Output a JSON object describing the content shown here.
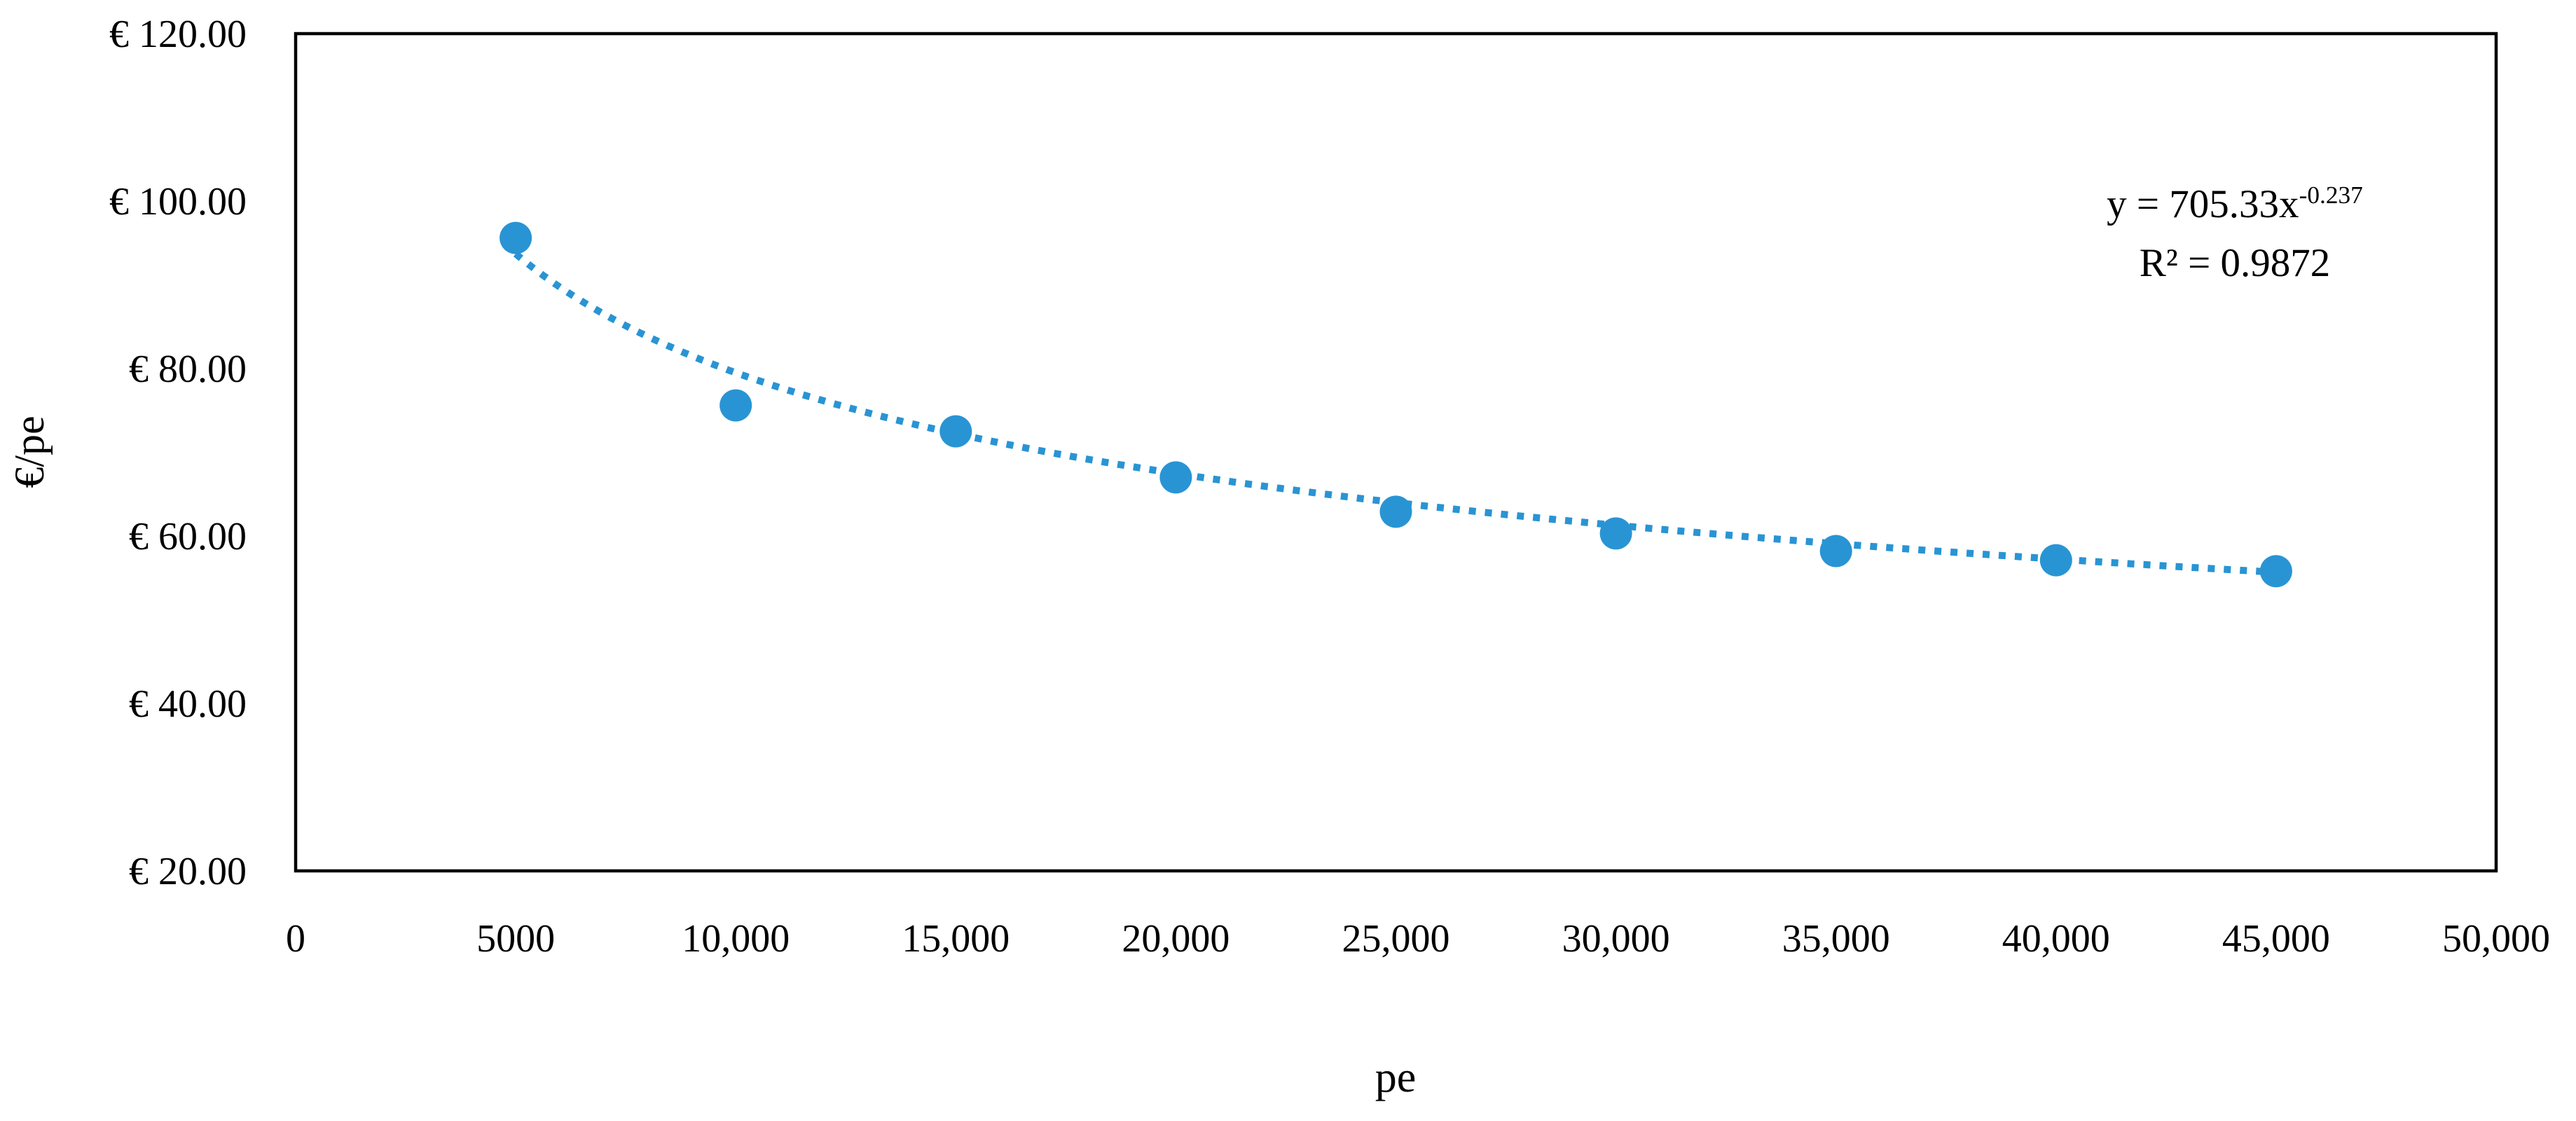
{
  "colors": {
    "series_blue": "#2994D4",
    "axis_black": "#000000",
    "background": "#FFFFFF"
  },
  "chart_data": {
    "type": "scatter",
    "title": "",
    "xlabel": "pe",
    "ylabel": "€/pe",
    "xlim": [
      0,
      50000
    ],
    "ylim": [
      20,
      120
    ],
    "grid": false,
    "legend_position": "none",
    "x_ticks": [
      {
        "value": 0,
        "label": "0"
      },
      {
        "value": 5000,
        "label": "5000"
      },
      {
        "value": 10000,
        "label": "10,000"
      },
      {
        "value": 15000,
        "label": "15,000"
      },
      {
        "value": 20000,
        "label": "20,000"
      },
      {
        "value": 25000,
        "label": "25,000"
      },
      {
        "value": 30000,
        "label": "30,000"
      },
      {
        "value": 35000,
        "label": "35,000"
      },
      {
        "value": 40000,
        "label": "40,000"
      },
      {
        "value": 45000,
        "label": "45,000"
      },
      {
        "value": 50000,
        "label": "50,000"
      }
    ],
    "y_ticks": [
      {
        "value": 20,
        "label": "€ 20.00"
      },
      {
        "value": 40,
        "label": "€ 40.00"
      },
      {
        "value": 60,
        "label": "€ 60.00"
      },
      {
        "value": 80,
        "label": "€ 80.00"
      },
      {
        "value": 100,
        "label": "€ 100.00"
      },
      {
        "value": 120,
        "label": "€ 120.00"
      }
    ],
    "points": [
      {
        "x": 5000,
        "y": 95.6
      },
      {
        "x": 10000,
        "y": 75.6
      },
      {
        "x": 15000,
        "y": 72.5
      },
      {
        "x": 20000,
        "y": 67.0
      },
      {
        "x": 25000,
        "y": 62.9
      },
      {
        "x": 30000,
        "y": 60.3
      },
      {
        "x": 35000,
        "y": 58.2
      },
      {
        "x": 40000,
        "y": 57.1
      },
      {
        "x": 45000,
        "y": 55.8
      }
    ],
    "trendline": {
      "type": "power",
      "coefficient": 705.33,
      "exponent": -0.237,
      "r_squared": 0.9872,
      "x_start": 5000,
      "x_end": 45000,
      "style": "dotted",
      "color": "#2994D4"
    },
    "annotation": {
      "equation_base": "y = 705.33x",
      "equation_exponent": "-0.237",
      "r2_text": "R² = 0.9872"
    }
  }
}
